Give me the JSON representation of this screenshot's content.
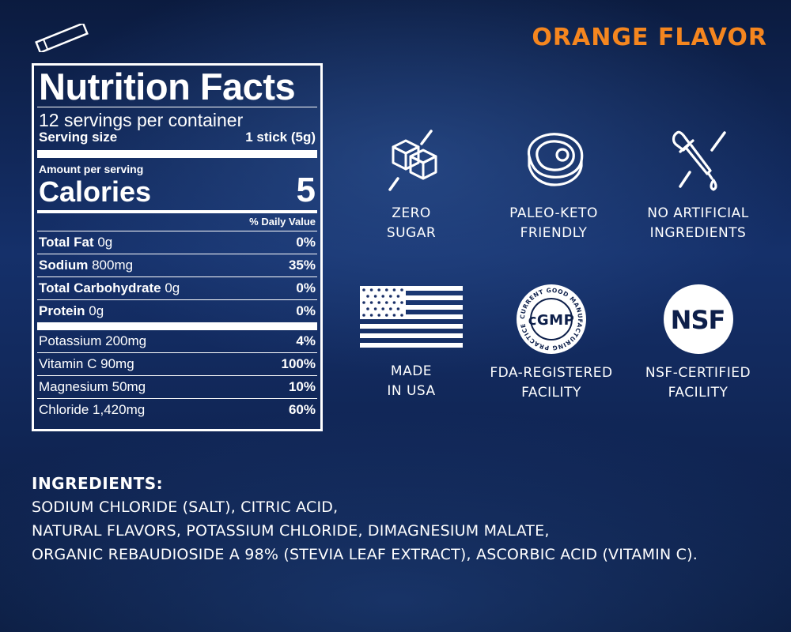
{
  "flavor": "ORANGE FLAVOR",
  "nutrition": {
    "title": "Nutrition Facts",
    "servings": "12 servings per container",
    "serving_size_label": "Serving size",
    "serving_size_value": "1 stick (5g)",
    "amount_per_serving": "Amount per serving",
    "calories_label": "Calories",
    "calories_value": "5",
    "daily_value_header": "% Daily Value",
    "rows": [
      {
        "name": "Total Fat",
        "amount": "0g",
        "pct": "0%"
      },
      {
        "name": "Sodium",
        "amount": "800mg",
        "pct": "35%"
      },
      {
        "name": "Total Carbohydrate",
        "amount": "0g",
        "pct": "0%"
      },
      {
        "name": "Protein",
        "amount": "0g",
        "pct": "0%"
      }
    ],
    "vitamins": [
      {
        "name": "Potassium",
        "amount": "200mg",
        "pct": "4%"
      },
      {
        "name": "Vitamin C",
        "amount": "90mg",
        "pct": "100%"
      },
      {
        "name": "Magnesium",
        "amount": "50mg",
        "pct": "10%"
      },
      {
        "name": "Chloride",
        "amount": "1,420mg",
        "pct": "60%"
      }
    ]
  },
  "features": [
    {
      "icon": "sugar-cubes-crossed-icon",
      "line1": "ZERO",
      "line2": "SUGAR"
    },
    {
      "icon": "steak-icon",
      "line1": "PALEO-KETO",
      "line2": "FRIENDLY"
    },
    {
      "icon": "dropper-crossed-icon",
      "line1": "NO ARTIFICIAL",
      "line2": "INGREDIENTS"
    },
    {
      "icon": "usa-flag-icon",
      "line1": "MADE",
      "line2": "IN USA"
    },
    {
      "icon": "cgmp-seal-icon",
      "line1": "FDA-REGISTERED",
      "line2": "FACILITY"
    },
    {
      "icon": "nsf-seal-icon",
      "line1": "NSF-CERTIFIED",
      "line2": "FACILITY"
    }
  ],
  "cgmp_seal": {
    "center": "cGMP",
    "ring": "CURRENT GOOD MANUFACTURING PRACTICE"
  },
  "nsf_seal": {
    "text": "NSF"
  },
  "ingredients": {
    "title": "INGREDIENTS:",
    "lines": [
      "SODIUM CHLORIDE (SALT), CITRIC ACID,",
      "NATURAL FLAVORS, POTASSIUM CHLORIDE, DIMAGNESIUM MALATE,",
      "ORGANIC REBAUDIOSIDE A 98% (STEVIA LEAF EXTRACT), ASCORBIC ACID (VITAMIN C)."
    ]
  }
}
